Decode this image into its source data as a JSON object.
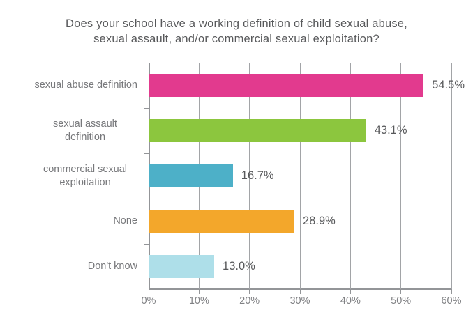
{
  "chart_data": {
    "type": "bar",
    "orientation": "horizontal",
    "title": "Does your school have a working definition of child sexual abuse, sexual assault, and/or commercial sexual exploitation?",
    "title_line1": "Does your school have a working definition of child sexual abuse,",
    "title_line2": "sexual assault, and/or commercial sexual exploitation?",
    "categories": [
      "sexual abuse definition",
      "sexual assault definition",
      "commercial sexual exploitation",
      "None",
      "Don't know"
    ],
    "values": [
      54.5,
      43.1,
      16.7,
      28.9,
      13.0
    ],
    "value_labels": [
      "54.5%",
      "43.1%",
      "16.7%",
      "28.9%",
      "13.0%"
    ],
    "bar_colors": [
      "#e23a8e",
      "#8cc63e",
      "#4db0c8",
      "#f3a72b",
      "#aedfe9"
    ],
    "xlim": [
      0,
      60
    ],
    "x_tick_labels": [
      "0%",
      "10%",
      "20%",
      "30%",
      "40%",
      "50%",
      "60%"
    ],
    "x_tick_values": [
      0,
      10,
      20,
      30,
      40,
      50,
      60
    ],
    "grid": "vertical-on",
    "legend": "none",
    "axis_color": "#939598",
    "gridline_color": "#a2a4a7",
    "title_color": "#58595b",
    "value_label_color": "#58595b",
    "category_label_color": "#77787b"
  }
}
